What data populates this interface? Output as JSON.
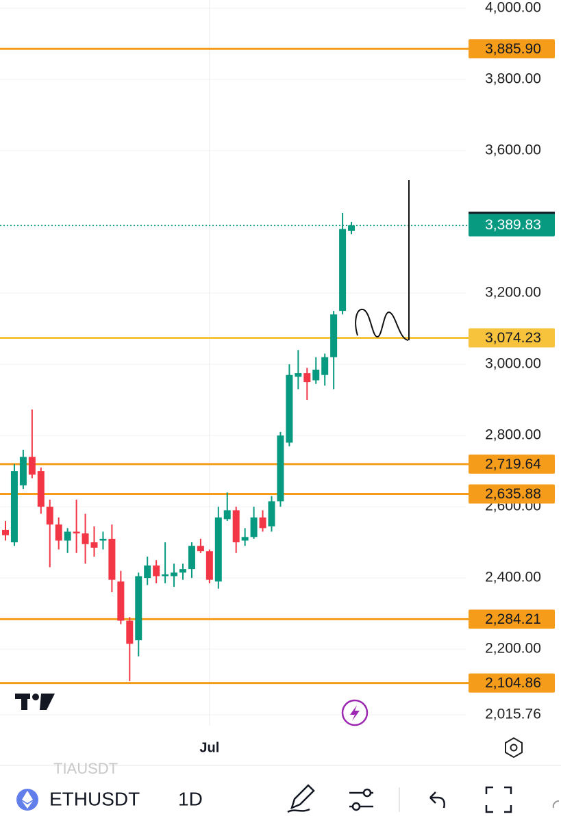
{
  "chart_data": {
    "type": "candlestick",
    "categories": [
      null,
      null,
      null,
      null,
      null,
      null,
      null,
      null,
      null,
      null,
      null,
      null,
      null,
      null,
      null,
      null,
      null,
      null,
      null,
      null,
      null,
      null,
      null,
      "Jul",
      null,
      null,
      null,
      null,
      null,
      null,
      null,
      null,
      null,
      null,
      null,
      null,
      null,
      null,
      null,
      null
    ],
    "open": [
      2535,
      2500,
      2660,
      2740,
      2700,
      2600,
      2550,
      2505,
      2530,
      2525,
      2500,
      2505,
      2510,
      2390,
      2280,
      2225,
      2400,
      2435,
      2405,
      2405,
      2415,
      2425,
      2490,
      2475,
      2390,
      2565,
      2590,
      2505,
      2515,
      2570,
      2545,
      2615,
      2780,
      2965,
      2975,
      2955,
      2970,
      3020,
      3150,
      3375
    ],
    "high": [
      2560,
      2720,
      2760,
      2873,
      2710,
      2620,
      2570,
      2540,
      2620,
      2580,
      2545,
      2530,
      2550,
      2420,
      2290,
      2415,
      2460,
      2450,
      2500,
      2440,
      2440,
      2500,
      2510,
      2480,
      2600,
      2640,
      2600,
      2540,
      2600,
      2590,
      2630,
      2810,
      3000,
      3040,
      2990,
      3020,
      3030,
      3150,
      3425,
      3400
    ],
    "low": [
      2505,
      2490,
      2650,
      2680,
      2580,
      2430,
      2480,
      2470,
      2470,
      2440,
      2460,
      2480,
      2360,
      2270,
      2110,
      2180,
      2380,
      2385,
      2385,
      2375,
      2395,
      2400,
      2470,
      2385,
      2370,
      2560,
      2470,
      2490,
      2510,
      2530,
      2530,
      2600,
      2770,
      2930,
      2900,
      2945,
      2940,
      2930,
      3140,
      3365
    ],
    "close": [
      2520,
      2700,
      2740,
      2690,
      2600,
      2550,
      2505,
      2530,
      2525,
      2495,
      2485,
      2510,
      2395,
      2280,
      2215,
      2405,
      2435,
      2405,
      2410,
      2415,
      2425,
      2490,
      2475,
      2395,
      2570,
      2590,
      2500,
      2515,
      2570,
      2540,
      2615,
      2800,
      2970,
      2975,
      2950,
      2985,
      3020,
      3140,
      3380,
      3390
    ],
    "up_color": "#089981",
    "down_color": "#f23645",
    "ylim": [
      1985,
      4023
    ],
    "yticks": [
      {
        "value": 4000,
        "label": "4,000.00"
      },
      {
        "value": 3800,
        "label": "3,800.00"
      },
      {
        "value": 3600,
        "label": "3,600.00"
      },
      {
        "value": 3200,
        "label": "3,200.00"
      },
      {
        "value": 3000,
        "label": "3,000.00"
      },
      {
        "value": 2800,
        "label": "2,800.00"
      },
      {
        "value": 2600,
        "label": "2,600.00"
      },
      {
        "value": 2400,
        "label": "2,400.00"
      },
      {
        "value": 2200,
        "label": "2,200.00"
      },
      {
        "value": 2015.76,
        "label": "2,015.76"
      }
    ],
    "grid": true,
    "levels": [
      {
        "value": 3885.9,
        "label": "3,885.90",
        "color": "#f59c1a"
      },
      {
        "value": 3074.23,
        "label": "3,074.23",
        "color": "#f7c33c"
      },
      {
        "value": 2719.64,
        "label": "2,719.64",
        "color": "#f59c1a"
      },
      {
        "value": 2635.88,
        "label": "2,635.88",
        "color": "#f59c1a"
      },
      {
        "value": 2284.21,
        "label": "2,284.21",
        "color": "#f59c1a"
      },
      {
        "value": 2104.86,
        "label": "2,104.86",
        "color": "#f59c1a"
      }
    ],
    "last_price": {
      "value": 3389.83,
      "label": "3,389.83",
      "color": "#089981"
    }
  },
  "toolbar": {
    "symbol": "ETHUSDT",
    "interval": "1D",
    "previous_symbol": "TIAUSDT"
  }
}
